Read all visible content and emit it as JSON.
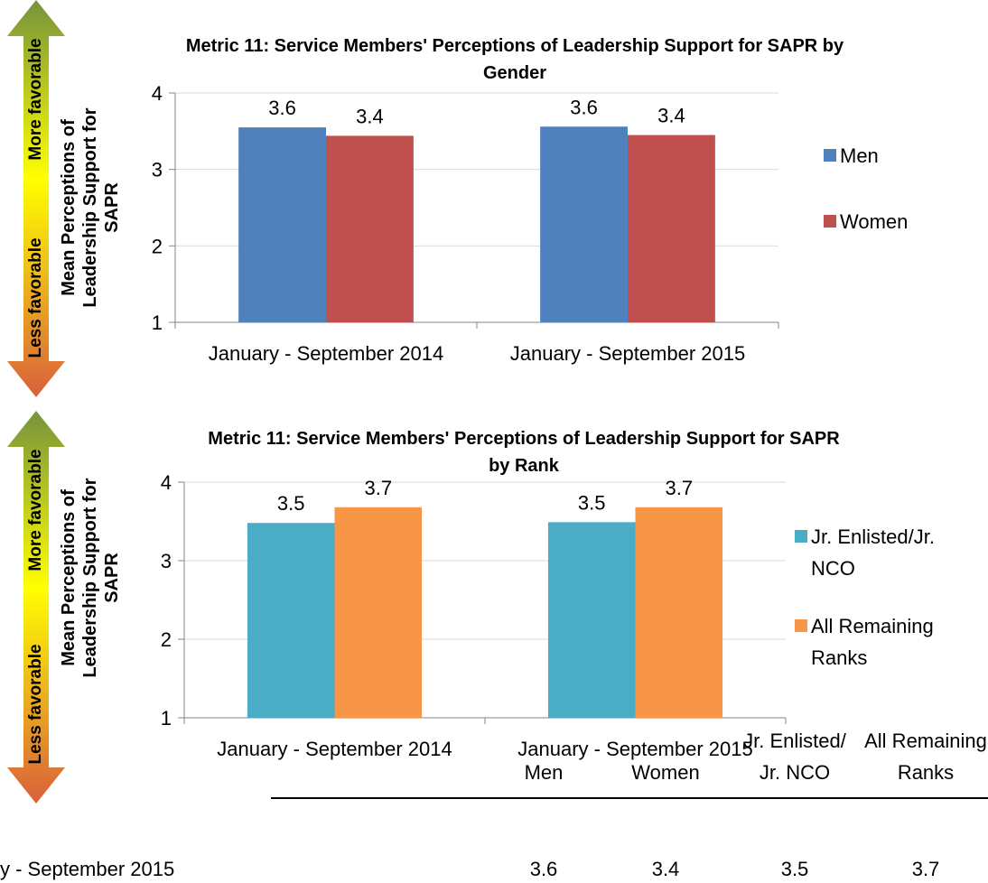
{
  "chart_data": [
    {
      "type": "bar",
      "title": "Metric 11: Service Members' Perceptions of Leadership Support for SAPR by Gender",
      "y_label": "Mean Perceptions of Leadership Support for SAPR",
      "annotations": [
        "More favorable",
        "Less favorable"
      ],
      "categories": [
        "January - September 2014",
        "January - September 2015"
      ],
      "series": [
        {
          "name": "Men",
          "color": "#4f81bd",
          "values": [
            3.55,
            3.56
          ],
          "value_labels": [
            "3.6",
            "3.6"
          ]
        },
        {
          "name": "Women",
          "color": "#c0504d",
          "values": [
            3.44,
            3.45
          ],
          "value_labels": [
            "3.4",
            "3.4"
          ]
        }
      ],
      "ylim": [
        1,
        4
      ],
      "yticks": [
        1,
        2,
        3,
        4
      ],
      "grid": true,
      "legend": "right"
    },
    {
      "type": "bar",
      "title": "Metric 11: Service Members' Perceptions of Leadership Support for SAPR by Rank",
      "y_label": "Mean Perceptions of Leadership Support for SAPR",
      "annotations": [
        "More favorable",
        "Less favorable"
      ],
      "categories": [
        "January - September 2014",
        "January - September 2015"
      ],
      "series": [
        {
          "name": "Jr. Enlisted/Jr. NCO",
          "color": "#4bacc6",
          "values": [
            3.48,
            3.49
          ],
          "value_labels": [
            "3.5",
            "3.5"
          ]
        },
        {
          "name": "All Remaining Ranks",
          "color": "#f79646",
          "values": [
            3.68,
            3.68
          ],
          "value_labels": [
            "3.7",
            "3.7"
          ]
        }
      ],
      "ylim": [
        1,
        4
      ],
      "yticks": [
        1,
        2,
        3,
        4
      ],
      "grid": true,
      "legend": "right"
    }
  ],
  "table": {
    "columns": [
      "Men",
      "Women",
      "Jr. Enlisted/ Jr. NCO",
      "All Remaining Ranks"
    ],
    "rows": [
      [
        "y - September 2015",
        "3.6",
        "3.4",
        "3.5",
        "3.7"
      ]
    ]
  }
}
